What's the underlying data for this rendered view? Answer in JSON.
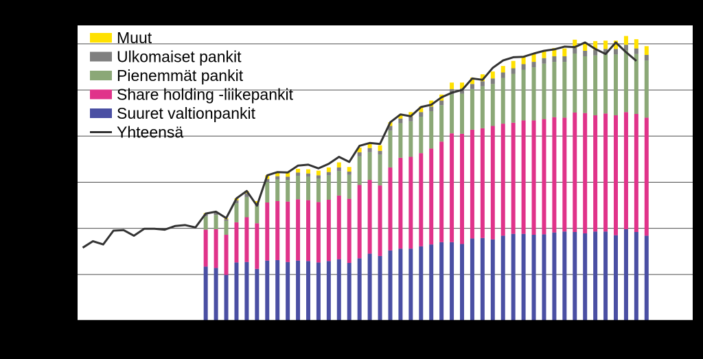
{
  "chart_data": {
    "type": "bar",
    "stacked": true,
    "title": "",
    "xlabel": "",
    "ylabel": "",
    "ylim": [
      0,
      6.4
    ],
    "grid": true,
    "legend_position": "top-left",
    "series": [
      {
        "name": "Suuret valtionpankit",
        "color": "#4A4FA3",
        "values": [
          1.17,
          1.14,
          0.99,
          1.26,
          1.27,
          1.12,
          1.3,
          1.31,
          1.27,
          1.3,
          1.29,
          1.26,
          1.29,
          1.33,
          1.25,
          1.35,
          1.45,
          1.4,
          1.52,
          1.56,
          1.56,
          1.61,
          1.65,
          1.7,
          1.7,
          1.66,
          1.78,
          1.79,
          1.76,
          1.84,
          1.88,
          1.88,
          1.86,
          1.87,
          1.91,
          1.93,
          1.92,
          1.89,
          1.93,
          1.93,
          1.85,
          1.98,
          1.92,
          1.84
        ]
      },
      {
        "name": "Share holding -liikepankit",
        "color": "#E0338A",
        "values": [
          0.8,
          0.84,
          0.87,
          0.87,
          0.97,
          0.99,
          1.26,
          1.28,
          1.31,
          1.33,
          1.32,
          1.31,
          1.33,
          1.38,
          1.39,
          1.59,
          1.6,
          1.53,
          1.8,
          1.97,
          1.99,
          2.02,
          2.08,
          2.18,
          2.36,
          2.39,
          2.36,
          2.38,
          2.46,
          2.43,
          2.41,
          2.46,
          2.48,
          2.5,
          2.5,
          2.47,
          2.59,
          2.61,
          2.52,
          2.56,
          2.6,
          2.54,
          2.56,
          2.56
        ]
      },
      {
        "name": "Pienemmät pankit",
        "color": "#8BA877",
        "values": [
          0.29,
          0.31,
          0.3,
          0.41,
          0.44,
          0.38,
          0.44,
          0.47,
          0.47,
          0.51,
          0.51,
          0.51,
          0.53,
          0.53,
          0.52,
          0.62,
          0.6,
          0.67,
          0.8,
          0.75,
          0.77,
          0.79,
          0.81,
          0.79,
          0.85,
          0.87,
          0.88,
          0.91,
          0.91,
          0.99,
          1.06,
          1.1,
          1.15,
          1.2,
          1.2,
          1.21,
          1.28,
          1.23,
          1.3,
          1.28,
          1.32,
          1.34,
          1.3,
          1.24
        ]
      },
      {
        "name": "Ulkomaiset pankit",
        "color": "#7F7F7F",
        "values": [
          0.05,
          0.05,
          0.04,
          0.07,
          0.08,
          0.05,
          0.07,
          0.07,
          0.07,
          0.07,
          0.07,
          0.07,
          0.07,
          0.08,
          0.07,
          0.09,
          0.09,
          0.08,
          0.1,
          0.1,
          0.1,
          0.1,
          0.1,
          0.1,
          0.11,
          0.11,
          0.11,
          0.11,
          0.12,
          0.12,
          0.12,
          0.12,
          0.12,
          0.12,
          0.12,
          0.12,
          0.12,
          0.12,
          0.12,
          0.12,
          0.12,
          0.12,
          0.12,
          0.12
        ]
      },
      {
        "name": "Muut",
        "color": "#FFE100",
        "values": [
          0.02,
          0.02,
          0.02,
          0.04,
          0.05,
          0.05,
          0.08,
          0.09,
          0.1,
          0.08,
          0.09,
          0.1,
          0.1,
          0.11,
          0.1,
          0.1,
          0.11,
          0.12,
          0.08,
          0.09,
          0.1,
          0.12,
          0.13,
          0.13,
          0.14,
          0.13,
          0.14,
          0.15,
          0.15,
          0.14,
          0.16,
          0.16,
          0.17,
          0.17,
          0.18,
          0.17,
          0.18,
          0.18,
          0.19,
          0.18,
          0.18,
          0.19,
          0.2,
          0.19
        ]
      }
    ],
    "bar_start_index": 12,
    "line": {
      "name": "Yhteensä",
      "color": "#333333",
      "values": [
        1.58,
        1.72,
        1.65,
        1.95,
        1.96,
        1.84,
        1.99,
        1.99,
        1.97,
        2.05,
        2.07,
        2.02,
        2.32,
        2.36,
        2.22,
        2.65,
        2.81,
        2.49,
        3.15,
        3.22,
        3.21,
        3.36,
        3.38,
        3.3,
        3.4,
        3.55,
        3.44,
        3.79,
        3.85,
        3.83,
        4.3,
        4.47,
        4.43,
        4.63,
        4.68,
        4.84,
        4.94,
        5.0,
        5.25,
        5.22,
        5.48,
        5.64,
        5.71,
        5.72,
        5.79,
        5.85,
        5.88,
        5.94,
        5.93,
        6.03,
        5.89,
        5.78,
        6.03,
        5.82,
        5.63
      ]
    },
    "n_slots": 60
  }
}
